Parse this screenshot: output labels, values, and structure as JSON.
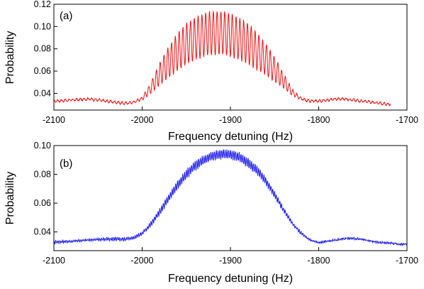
{
  "chart_data": [
    {
      "type": "line",
      "panel_label": "(a)",
      "xlabel": "Frequency detuning (Hz)",
      "ylabel": "Probability",
      "xlim": [
        -2100,
        -1700
      ],
      "ylim": [
        0.025,
        0.12
      ],
      "xticks": [
        -2100,
        -2000,
        -1900,
        -1800,
        -1700
      ],
      "xtick_labels": [
        "-2100",
        "-2000",
        "-1900",
        "-1800",
        "-1700"
      ],
      "yticks": [
        0.04,
        0.06,
        0.08,
        0.1,
        0.12
      ],
      "ytick_labels": [
        "0.04",
        "0.06",
        "0.08",
        "0.10",
        "0.12"
      ],
      "grid": false,
      "series": [
        {
          "color": "#ee1111",
          "x_range": [
            -2100,
            -1718
          ],
          "envelope_x": [
            -2100,
            -2080,
            -2060,
            -2040,
            -2020,
            -2010,
            -2000,
            -1990,
            -1980,
            -1970,
            -1960,
            -1950,
            -1940,
            -1930,
            -1920,
            -1910,
            -1900,
            -1890,
            -1880,
            -1870,
            -1860,
            -1850,
            -1840,
            -1830,
            -1820,
            -1810,
            -1800,
            -1790,
            -1780,
            -1770,
            -1760,
            -1750,
            -1740,
            -1730,
            -1718
          ],
          "envelope_upper": [
            0.034,
            0.035,
            0.036,
            0.034,
            0.032,
            0.033,
            0.037,
            0.05,
            0.068,
            0.082,
            0.094,
            0.103,
            0.108,
            0.112,
            0.114,
            0.114,
            0.112,
            0.108,
            0.103,
            0.095,
            0.085,
            0.073,
            0.058,
            0.044,
            0.036,
            0.034,
            0.034,
            0.035,
            0.036,
            0.036,
            0.035,
            0.034,
            0.033,
            0.032,
            0.031
          ],
          "envelope_lower": [
            0.032,
            0.033,
            0.034,
            0.032,
            0.03,
            0.031,
            0.034,
            0.04,
            0.048,
            0.054,
            0.06,
            0.066,
            0.07,
            0.073,
            0.075,
            0.075,
            0.073,
            0.07,
            0.066,
            0.061,
            0.056,
            0.05,
            0.045,
            0.038,
            0.034,
            0.032,
            0.032,
            0.033,
            0.034,
            0.034,
            0.033,
            0.032,
            0.031,
            0.03,
            0.029
          ],
          "fringe_period_hz": 4.3
        }
      ]
    },
    {
      "type": "line",
      "panel_label": "(b)",
      "xlabel": "Frequency detuning (Hz)",
      "ylabel": "Probability",
      "xlim": [
        -2100,
        -1700
      ],
      "ylim": [
        0.027,
        0.1
      ],
      "xticks": [
        -2100,
        -2000,
        -1900,
        -1800,
        -1700
      ],
      "xtick_labels": [
        "-2100",
        "-2000",
        "-1900",
        "-1800",
        "-1700"
      ],
      "yticks": [
        0.04,
        0.06,
        0.08,
        0.1
      ],
      "ytick_labels": [
        "0.04",
        "0.06",
        "0.08",
        "0.10"
      ],
      "grid": false,
      "series": [
        {
          "color": "#1f1fe6",
          "x_range": [
            -2100,
            -1700
          ],
          "envelope_x": [
            -2100,
            -2080,
            -2060,
            -2040,
            -2020,
            -2010,
            -2000,
            -1990,
            -1980,
            -1970,
            -1960,
            -1950,
            -1940,
            -1930,
            -1920,
            -1910,
            -1900,
            -1890,
            -1880,
            -1870,
            -1860,
            -1850,
            -1840,
            -1830,
            -1820,
            -1810,
            -1800,
            -1790,
            -1780,
            -1770,
            -1760,
            -1750,
            -1740,
            -1730,
            -1720,
            -1710,
            -1700
          ],
          "envelope_upper": [
            0.034,
            0.034,
            0.035,
            0.036,
            0.036,
            0.037,
            0.04,
            0.047,
            0.056,
            0.066,
            0.075,
            0.083,
            0.089,
            0.093,
            0.096,
            0.097,
            0.097,
            0.095,
            0.091,
            0.086,
            0.078,
            0.068,
            0.057,
            0.047,
            0.04,
            0.035,
            0.033,
            0.034,
            0.035,
            0.036,
            0.036,
            0.035,
            0.034,
            0.033,
            0.033,
            0.032,
            0.032
          ],
          "envelope_lower": [
            0.032,
            0.033,
            0.034,
            0.034,
            0.034,
            0.035,
            0.038,
            0.044,
            0.052,
            0.061,
            0.07,
            0.077,
            0.083,
            0.087,
            0.09,
            0.091,
            0.091,
            0.089,
            0.085,
            0.08,
            0.073,
            0.064,
            0.054,
            0.045,
            0.038,
            0.034,
            0.032,
            0.033,
            0.034,
            0.035,
            0.035,
            0.034,
            0.033,
            0.032,
            0.032,
            0.031,
            0.031
          ],
          "fringe_period_hz": 2.0
        }
      ]
    }
  ]
}
